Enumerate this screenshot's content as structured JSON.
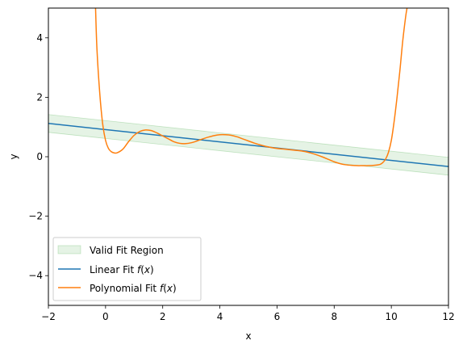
{
  "chart_data": {
    "type": "line",
    "title": "",
    "xlabel": "x",
    "ylabel": "y",
    "xlim": [
      -2,
      12
    ],
    "ylim": [
      -5,
      5
    ],
    "xticks": [
      -2,
      0,
      2,
      4,
      6,
      8,
      10,
      12
    ],
    "yticks": [
      -4,
      -2,
      0,
      2,
      4
    ],
    "xtick_labels": [
      "−2",
      "0",
      "2",
      "4",
      "6",
      "8",
      "10",
      "12"
    ],
    "ytick_labels": [
      "−4",
      "−2",
      "0",
      "2",
      "4"
    ],
    "grid": false,
    "legend_position": "lower-left",
    "series": [
      {
        "name": "Valid Fit Region",
        "kind": "band",
        "color": "#2ca02c",
        "x": [
          -2,
          12
        ],
        "y_lower": [
          0.82,
          -0.62
        ],
        "y_upper": [
          1.42,
          -0.02
        ]
      },
      {
        "name": "Linear Fit f(x)",
        "kind": "line",
        "color": "#1f77b4",
        "x": [
          -2,
          12
        ],
        "y": [
          1.12,
          -0.33
        ]
      },
      {
        "name": "Polynomial Fit f(x)",
        "kind": "line",
        "color": "#ff7f0e",
        "x": [
          -0.35,
          -0.3,
          -0.2,
          -0.1,
          0.0,
          0.1,
          0.2,
          0.3,
          0.4,
          0.6,
          0.8,
          1.0,
          1.2,
          1.4,
          1.6,
          1.8,
          2.0,
          2.2,
          2.4,
          2.6,
          2.8,
          3.0,
          3.2,
          3.4,
          3.6,
          3.8,
          4.0,
          4.2,
          4.4,
          4.6,
          4.8,
          5.0,
          5.2,
          5.4,
          5.6,
          5.8,
          6.0,
          6.2,
          6.4,
          6.6,
          6.8,
          7.0,
          7.2,
          7.4,
          7.6,
          7.8,
          8.0,
          8.2,
          8.4,
          8.6,
          8.8,
          9.0,
          9.2,
          9.4,
          9.6,
          9.7,
          9.8,
          9.9,
          10.0,
          10.1,
          10.2,
          10.3,
          10.4,
          10.5,
          10.55
        ],
        "y": [
          5.0,
          3.6,
          2.1,
          1.1,
          0.55,
          0.28,
          0.17,
          0.13,
          0.13,
          0.25,
          0.5,
          0.72,
          0.85,
          0.9,
          0.88,
          0.8,
          0.7,
          0.6,
          0.5,
          0.45,
          0.44,
          0.47,
          0.53,
          0.6,
          0.66,
          0.71,
          0.74,
          0.74,
          0.72,
          0.67,
          0.6,
          0.53,
          0.46,
          0.4,
          0.35,
          0.31,
          0.28,
          0.26,
          0.24,
          0.22,
          0.2,
          0.17,
          0.12,
          0.06,
          -0.01,
          -0.09,
          -0.17,
          -0.23,
          -0.27,
          -0.29,
          -0.3,
          -0.3,
          -0.3,
          -0.29,
          -0.26,
          -0.2,
          -0.08,
          0.15,
          0.55,
          1.2,
          2.0,
          2.9,
          3.9,
          4.7,
          5.0
        ]
      }
    ]
  }
}
